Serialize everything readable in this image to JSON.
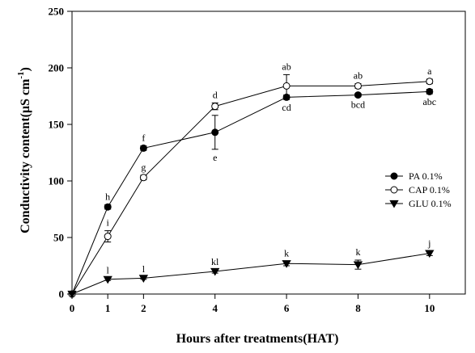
{
  "chart_data": {
    "type": "line",
    "title": "",
    "xlabel": "Hours after treatments(HAT)",
    "ylabel_main": "Conductivity content(",
    "ylabel_mu": "μ",
    "ylabel_unit": "S cm",
    "ylabel_sup": "-1",
    "ylabel_close": ")",
    "xlim": [
      0,
      11
    ],
    "ylim": [
      0,
      250
    ],
    "xticks": [
      "0",
      "1",
      "2",
      "4",
      "6",
      "8",
      "10"
    ],
    "xtick_values": [
      0,
      1,
      2,
      4,
      6,
      8,
      10
    ],
    "yticks": [
      "0",
      "50",
      "100",
      "150",
      "200",
      "250"
    ],
    "ytick_values": [
      0,
      50,
      100,
      150,
      200,
      250
    ],
    "grid": false,
    "legend_position": "right",
    "x": [
      0,
      1,
      2,
      4,
      6,
      8,
      10
    ],
    "series": [
      {
        "name": "PA 0.1%",
        "marker": "filled-circle",
        "values": [
          0,
          77,
          129,
          143,
          174,
          176,
          179
        ],
        "errors": [
          0,
          2,
          2,
          15,
          2,
          1.5,
          2
        ],
        "letters": [
          "",
          "h",
          "f",
          "e",
          "cd",
          "bcd",
          "abc"
        ],
        "letter_side": [
          "",
          "above",
          "above",
          "below",
          "below",
          "below",
          "below"
        ]
      },
      {
        "name": "CAP 0.1%",
        "marker": "open-circle",
        "values": [
          0,
          51,
          103,
          166,
          184,
          184,
          188
        ],
        "errors": [
          0,
          5,
          2,
          3,
          10,
          2,
          2
        ],
        "letters": [
          "",
          "i",
          "g",
          "d",
          "ab",
          "ab",
          "a"
        ],
        "letter_side": [
          "",
          "above",
          "above",
          "above",
          "above",
          "above",
          "above"
        ]
      },
      {
        "name": "GLU 0.1%",
        "marker": "filled-triangle-down",
        "values": [
          0,
          13,
          14,
          20,
          27,
          26,
          36
        ],
        "errors": [
          0,
          1,
          1,
          1.5,
          2,
          4,
          2
        ],
        "letters": [
          "",
          "l",
          "l",
          "kl",
          "k",
          "k",
          "j"
        ],
        "letter_side": [
          "",
          "above",
          "above",
          "above",
          "above",
          "above",
          "above"
        ]
      }
    ]
  }
}
